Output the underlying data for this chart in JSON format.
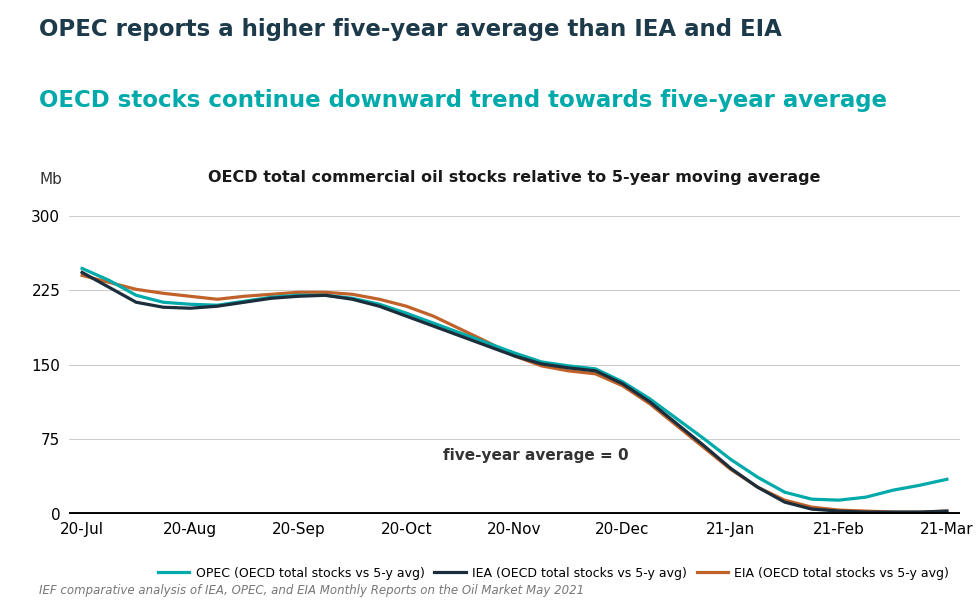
{
  "title_line1": "OPEC reports a higher five-year average than IEA and EIA",
  "title_line2": "OECD stocks continue downward trend towards five-year average",
  "chart_title": "OECD total commercial oil stocks relative to 5-year moving average",
  "ylabel": "Mb",
  "annotation": "five-year average = 0",
  "source": "IEF comparative analysis of IEA, OPEC, and EIA Monthly Reports on the Oil Market May 2021",
  "title_line1_color": "#1c3a4a",
  "title_line2_color": "#00aaaa",
  "chart_title_color": "#1a1a1a",
  "color_opec": "#00aaaa",
  "color_iea": "#1c2e3b",
  "color_eia": "#c0622a",
  "ylim": [
    0,
    320
  ],
  "yticks": [
    0,
    75,
    150,
    225,
    300
  ],
  "x_labels": [
    "20-Jul",
    "20-Aug",
    "20-Sep",
    "20-Oct",
    "20-Nov",
    "20-Dec",
    "21-Jan",
    "21-Feb",
    "21-Mar"
  ],
  "legend_labels": [
    "OPEC (OECD total stocks vs 5-y avg)",
    "IEA (OECD total stocks vs 5-y avg)",
    "EIA (OECD total stocks vs 5-y avg)"
  ],
  "opec_data": [
    247,
    235,
    220,
    213,
    211,
    210,
    214,
    218,
    220,
    220,
    217,
    211,
    202,
    192,
    182,
    172,
    162,
    153,
    149,
    146,
    133,
    116,
    96,
    76,
    55,
    37,
    22,
    15,
    14,
    17,
    24,
    29,
    35
  ],
  "iea_data": [
    243,
    228,
    213,
    208,
    207,
    209,
    213,
    217,
    219,
    220,
    216,
    209,
    199,
    189,
    179,
    169,
    159,
    151,
    147,
    144,
    131,
    113,
    91,
    69,
    46,
    27,
    12,
    5,
    3,
    2,
    2,
    2,
    3
  ],
  "eia_data": [
    240,
    233,
    226,
    222,
    219,
    216,
    219,
    221,
    223,
    223,
    221,
    216,
    209,
    199,
    186,
    173,
    159,
    149,
    144,
    141,
    129,
    111,
    89,
    67,
    45,
    27,
    14,
    7,
    4,
    3,
    2,
    2,
    3
  ]
}
